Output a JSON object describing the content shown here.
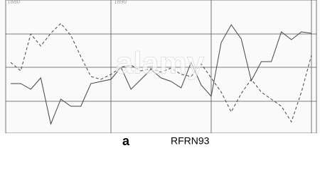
{
  "chart_data": {
    "type": "line",
    "top_labels": [
      "1880",
      "1890"
    ],
    "x": [
      1880,
      1881,
      1882,
      1883,
      1884,
      1885,
      1886,
      1887,
      1888,
      1889,
      1890,
      1891,
      1892,
      1893,
      1894,
      1895,
      1896,
      1897,
      1898,
      1899,
      1900,
      1901,
      1902,
      1903,
      1904,
      1905,
      1906,
      1907,
      1908,
      1909,
      1910
    ],
    "series": [
      {
        "color": "#444",
        "dash": false,
        "values": [
          70,
          70,
          62,
          78,
          13,
          48,
          38,
          38,
          70,
          73,
          76,
          93,
          62,
          76,
          90,
          78,
          73,
          64,
          100,
          68,
          52,
          128,
          153,
          133,
          74,
          101,
          101,
          143,
          132,
          143,
          141
        ]
      },
      {
        "color": "#444",
        "dash": true,
        "values": [
          100,
          88,
          140,
          123,
          141,
          155,
          138,
          108,
          80,
          76,
          83,
          93,
          96,
          88,
          91,
          86,
          92,
          83,
          80,
          98,
          78,
          58,
          30,
          56,
          76,
          58,
          48,
          38,
          16,
          58,
          110
        ]
      }
    ],
    "xlim": [
      1879.5,
      1910.5
    ],
    "ylim": [
      0,
      188
    ],
    "xticks": [
      1890,
      1900,
      1910
    ],
    "yticks": [
      45,
      93,
      140
    ],
    "grid": true
  },
  "watermark": {
    "brand": "alamy",
    "logo": "a",
    "image_id": "RFRN93"
  }
}
